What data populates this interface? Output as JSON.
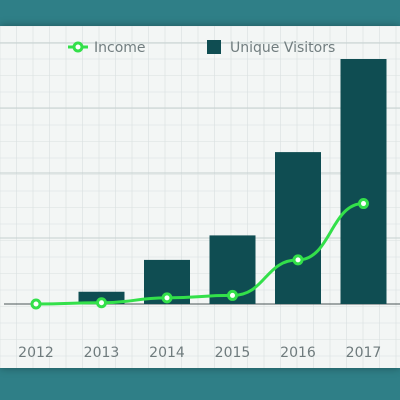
{
  "colors": {
    "background_frame": "#2f7f87",
    "chart_background": "#f3f6f5",
    "gridline": "#d9e0e0",
    "bar": "#0f4d52",
    "line": "#33e04a",
    "text": "#6f7b7d"
  },
  "legend": {
    "income_label": "Income",
    "visitors_label": "Unique Visitors",
    "income_icon": "circle-line-marker-icon",
    "visitors_icon": "square-marker-icon"
  },
  "chart_data": {
    "type": "bar",
    "categories": [
      "2012",
      "2013",
      "2014",
      "2015",
      "2016",
      "2017"
    ],
    "series": [
      {
        "name": "Unique Visitors",
        "type": "bar",
        "values": [
          0,
          5,
          18,
          28,
          62,
          100
        ]
      },
      {
        "name": "Income",
        "type": "line",
        "values": [
          0,
          0.5,
          2.5,
          3.5,
          18,
          41
        ]
      }
    ],
    "ylim": [
      0,
      100
    ],
    "grid": true,
    "legend_position": "top"
  }
}
